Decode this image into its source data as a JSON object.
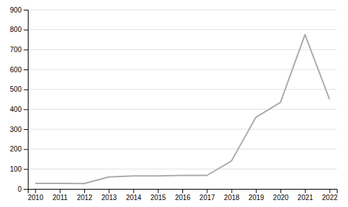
{
  "chart_data": {
    "type": "line",
    "x": [
      2010,
      2011,
      2012,
      2013,
      2014,
      2015,
      2016,
      2017,
      2018,
      2019,
      2020,
      2021,
      2022
    ],
    "values": [
      28,
      28,
      27,
      60,
      65,
      65,
      68,
      68,
      140,
      360,
      435,
      775,
      450
    ],
    "color": "#aaaaaa",
    "xlim": [
      2009.7,
      2022.3
    ],
    "xticks": [
      2010,
      2011,
      2012,
      2013,
      2014,
      2015,
      2016,
      2017,
      2018,
      2019,
      2020,
      2021,
      2022
    ],
    "ylim": [
      0,
      900
    ],
    "yticks": [
      0,
      100,
      200,
      300,
      400,
      500,
      600,
      700,
      800,
      900
    ],
    "grid": true
  }
}
